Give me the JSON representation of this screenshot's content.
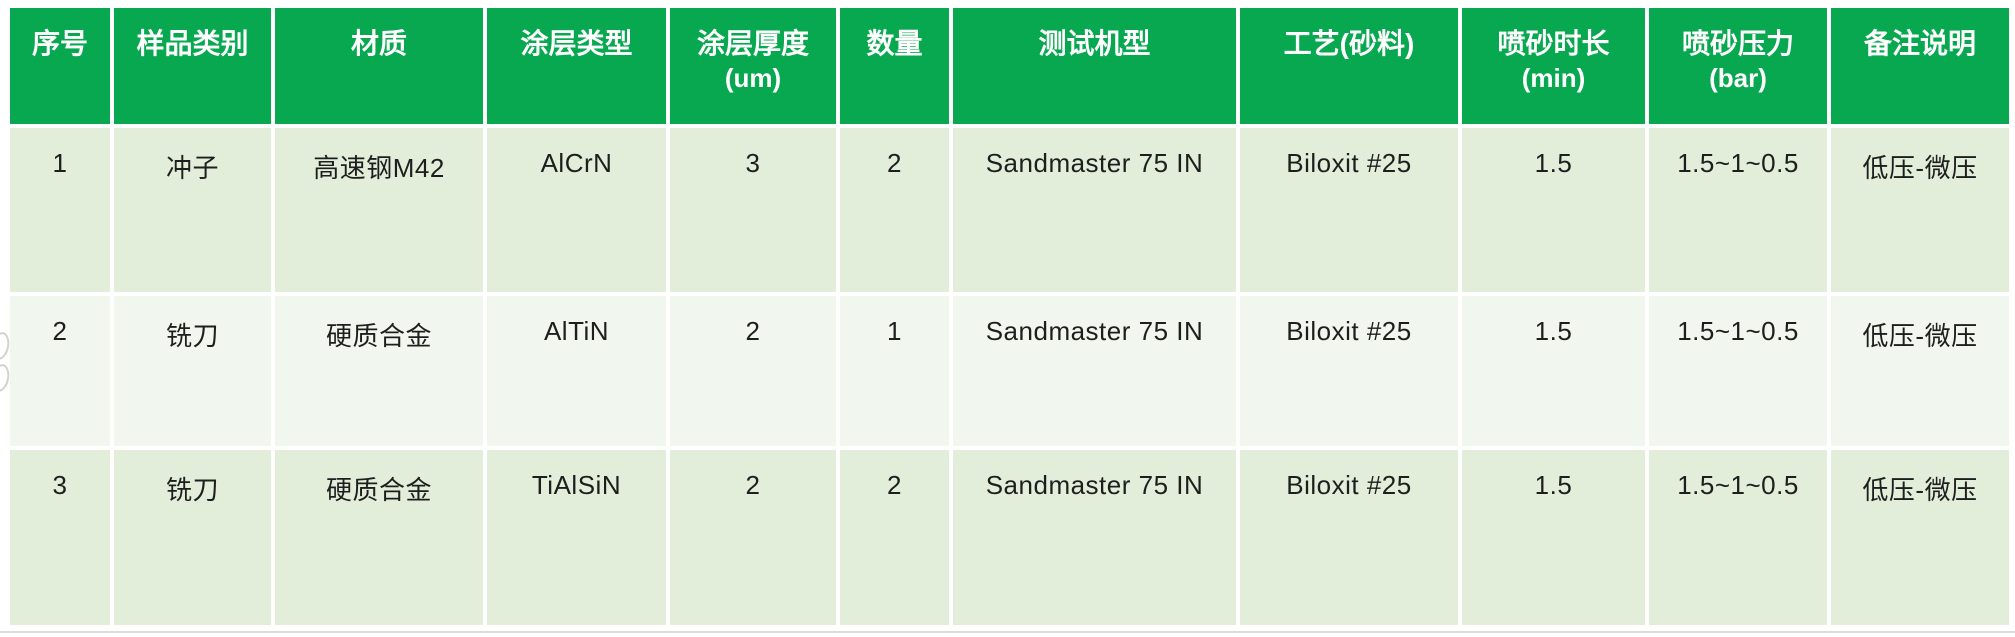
{
  "table": {
    "columns": [
      {
        "label": "序号"
      },
      {
        "label": "样品类别"
      },
      {
        "label": "材质"
      },
      {
        "label": "涂层类型"
      },
      {
        "label": "涂层厚度",
        "sub": "(um)"
      },
      {
        "label": "数量"
      },
      {
        "label": "测试机型"
      },
      {
        "label": "工艺(砂料)"
      },
      {
        "label": "喷砂时长",
        "sub": "(min)"
      },
      {
        "label": "喷砂压力",
        "sub": "(bar)"
      },
      {
        "label": "备注说明"
      }
    ],
    "rows": [
      {
        "cells": [
          "1",
          "冲子",
          "高速钢M42",
          "AlCrN",
          "3",
          "2",
          "Sandmaster 75 IN",
          "Biloxit #25",
          "1.5",
          "1.5~1~0.5",
          "低压-微压"
        ]
      },
      {
        "cells": [
          "2",
          "铣刀",
          "硬质合金",
          "AlTiN",
          "2",
          "1",
          "Sandmaster 75 IN",
          "Biloxit #25",
          "1.5",
          "1.5~1~0.5",
          "低压-微压"
        ]
      },
      {
        "cells": [
          "3",
          "铣刀",
          "硬质合金",
          "TiAlSiN",
          "2",
          "2",
          "Sandmaster 75 IN",
          "Biloxit #25",
          "1.5",
          "1.5~1~0.5",
          "低压-微压"
        ]
      }
    ]
  },
  "colors": {
    "header_bg": "#07a84f",
    "header_text": "#ffffff",
    "row_dark_bg": "#e2edda",
    "row_light_bg": "#f1f6ee",
    "body_text": "#1e1e1e",
    "grid_gap": "#ffffff"
  }
}
